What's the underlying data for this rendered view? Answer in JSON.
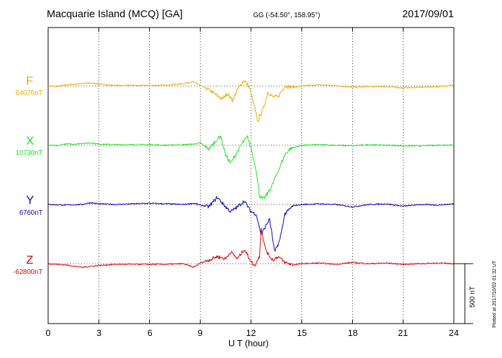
{
  "header": {
    "title": "Macquarie Island (MCQ)  [GA]",
    "coords": "GG (-54.50°, 158.95°)",
    "date": "2017/09/01"
  },
  "footer": {
    "plotted": "Plotted at 2017/10/02 01:32 UT",
    "scale_label": "500 nT"
  },
  "chart_data": {
    "type": "line",
    "title": "Macquarie Island (MCQ)  [GA]",
    "xlabel": "U T (hour)",
    "ylabel": "",
    "xlim": [
      0,
      24
    ],
    "xticks": [
      "0",
      "3",
      "6",
      "9",
      "12",
      "15",
      "18",
      "21",
      "24"
    ],
    "grid": true,
    "scale_bar_nT": 500,
    "series": [
      {
        "name": "F",
        "baseline_label": "64070nT",
        "baseline_nT": 64070,
        "color": "#F0A800",
        "points": [
          [
            0,
            2
          ],
          [
            0.5,
            -5
          ],
          [
            1,
            8
          ],
          [
            1.5,
            15
          ],
          [
            2,
            20
          ],
          [
            2.5,
            25
          ],
          [
            3,
            18
          ],
          [
            3.5,
            10
          ],
          [
            4,
            5
          ],
          [
            5,
            5
          ],
          [
            6,
            5
          ],
          [
            7,
            8
          ],
          [
            8,
            20
          ],
          [
            8.6,
            35
          ],
          [
            9,
            5
          ],
          [
            9.5,
            -30
          ],
          [
            10,
            -80
          ],
          [
            10.3,
            -110
          ],
          [
            10.6,
            -60
          ],
          [
            10.9,
            -120
          ],
          [
            11.2,
            -30
          ],
          [
            11.6,
            50
          ],
          [
            11.9,
            -10
          ],
          [
            12.2,
            -170
          ],
          [
            12.4,
            -300
          ],
          [
            12.55,
            -240
          ],
          [
            12.7,
            -200
          ],
          [
            13,
            -50
          ],
          [
            13.3,
            -90
          ],
          [
            13.6,
            -90
          ],
          [
            14,
            0
          ],
          [
            14.5,
            -10
          ],
          [
            15,
            0
          ],
          [
            16,
            10
          ],
          [
            17,
            5
          ],
          [
            18,
            -10
          ],
          [
            19,
            -5
          ],
          [
            20,
            -5
          ],
          [
            21,
            -15
          ],
          [
            22,
            -10
          ],
          [
            23,
            -5
          ],
          [
            24,
            10
          ]
        ]
      },
      {
        "name": "X",
        "baseline_label": "10730nT",
        "baseline_nT": 10730,
        "color": "#22DD22",
        "points": [
          [
            0,
            0
          ],
          [
            0.5,
            -5
          ],
          [
            1,
            10
          ],
          [
            1.5,
            10
          ],
          [
            2,
            15
          ],
          [
            2.5,
            20
          ],
          [
            3,
            10
          ],
          [
            4,
            5
          ],
          [
            5,
            5
          ],
          [
            6,
            5
          ],
          [
            7,
            0
          ],
          [
            8,
            5
          ],
          [
            8.6,
            10
          ],
          [
            9,
            20
          ],
          [
            9.5,
            -30
          ],
          [
            10.2,
            80
          ],
          [
            10.5,
            -80
          ],
          [
            10.8,
            -150
          ],
          [
            11,
            -100
          ],
          [
            11.5,
            20
          ],
          [
            11.8,
            70
          ],
          [
            12,
            -20
          ],
          [
            12.3,
            -200
          ],
          [
            12.5,
            -420
          ],
          [
            12.7,
            -450
          ],
          [
            12.9,
            -420
          ],
          [
            13.2,
            -350
          ],
          [
            13.5,
            -250
          ],
          [
            13.8,
            -150
          ],
          [
            14,
            -80
          ],
          [
            14.3,
            -30
          ],
          [
            15,
            0
          ],
          [
            16,
            5
          ],
          [
            17,
            0
          ],
          [
            18,
            -5
          ],
          [
            19,
            5
          ],
          [
            20,
            0
          ],
          [
            21,
            -5
          ],
          [
            22,
            -5
          ],
          [
            23,
            0
          ],
          [
            24,
            5
          ]
        ]
      },
      {
        "name": "Y",
        "baseline_label": "6760nT",
        "baseline_nT": 6760,
        "color": "#0000CC",
        "points": [
          [
            0,
            0
          ],
          [
            1,
            -5
          ],
          [
            2,
            0
          ],
          [
            2.5,
            15
          ],
          [
            3,
            5
          ],
          [
            4,
            0
          ],
          [
            5,
            5
          ],
          [
            6,
            10
          ],
          [
            7,
            5
          ],
          [
            8,
            0
          ],
          [
            8.6,
            10
          ],
          [
            9,
            -5
          ],
          [
            9.5,
            -20
          ],
          [
            10,
            60
          ],
          [
            10.5,
            -20
          ],
          [
            10.8,
            -60
          ],
          [
            11.2,
            -20
          ],
          [
            11.6,
            30
          ],
          [
            12,
            -60
          ],
          [
            12.3,
            -80
          ],
          [
            12.6,
            -250
          ],
          [
            12.8,
            -200
          ],
          [
            13.1,
            -120
          ],
          [
            13.4,
            -400
          ],
          [
            13.7,
            -300
          ],
          [
            14,
            -80
          ],
          [
            14.5,
            -10
          ],
          [
            15,
            0
          ],
          [
            16,
            5
          ],
          [
            17,
            0
          ],
          [
            18,
            -20
          ],
          [
            19,
            0
          ],
          [
            20,
            5
          ],
          [
            21,
            -15
          ],
          [
            22,
            0
          ],
          [
            23,
            -5
          ],
          [
            24,
            5
          ]
        ]
      },
      {
        "name": "Z",
        "baseline_label": "-62800nT",
        "baseline_nT": -62800,
        "color": "#E00000",
        "points": [
          [
            0,
            0
          ],
          [
            1,
            -10
          ],
          [
            2,
            -30
          ],
          [
            3,
            -15
          ],
          [
            4,
            -5
          ],
          [
            5,
            -5
          ],
          [
            6,
            -5
          ],
          [
            7,
            -5
          ],
          [
            8,
            0
          ],
          [
            8.6,
            -30
          ],
          [
            9,
            5
          ],
          [
            9.5,
            30
          ],
          [
            10,
            60
          ],
          [
            10.5,
            40
          ],
          [
            10.8,
            100
          ],
          [
            11.2,
            40
          ],
          [
            11.6,
            120
          ],
          [
            12,
            20
          ],
          [
            12.2,
            -20
          ],
          [
            12.5,
            60
          ],
          [
            12.6,
            300
          ],
          [
            12.8,
            150
          ],
          [
            13,
            80
          ],
          [
            13.3,
            30
          ],
          [
            13.6,
            60
          ],
          [
            14,
            10
          ],
          [
            14.5,
            -10
          ],
          [
            15,
            0
          ],
          [
            16,
            5
          ],
          [
            17,
            -5
          ],
          [
            18,
            10
          ],
          [
            19,
            0
          ],
          [
            20,
            5
          ],
          [
            21,
            -5
          ],
          [
            22,
            0
          ],
          [
            23,
            5
          ],
          [
            24,
            0
          ]
        ]
      }
    ]
  }
}
